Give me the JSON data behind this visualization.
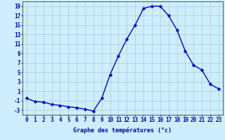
{
  "hours": [
    0,
    1,
    2,
    3,
    4,
    5,
    6,
    7,
    8,
    9,
    10,
    11,
    12,
    13,
    14,
    15,
    16,
    17,
    18,
    19,
    20,
    21,
    22,
    23
  ],
  "temperatures": [
    -0.5,
    -1.2,
    -1.3,
    -1.8,
    -2.0,
    -2.3,
    -2.5,
    -2.8,
    -3.2,
    -0.5,
    4.5,
    8.5,
    12.0,
    15.0,
    18.5,
    19.0,
    19.0,
    17.0,
    14.0,
    9.5,
    6.5,
    5.5,
    2.5,
    1.5
  ],
  "line_color": "#0000cc",
  "marker": "D",
  "marker_size": 1.8,
  "bg_color": "#cceeff",
  "grid_color": "#aacccc",
  "ylabel_ticks": [
    -3,
    -1,
    1,
    3,
    5,
    7,
    9,
    11,
    13,
    15,
    17,
    19
  ],
  "ylim": [
    -4,
    20
  ],
  "xlim": [
    -0.5,
    23.5
  ],
  "xlabel": "Graphe des températures (°c)",
  "xlabel_fontsize": 6,
  "tick_fontsize": 5.5,
  "line_width": 1.0
}
